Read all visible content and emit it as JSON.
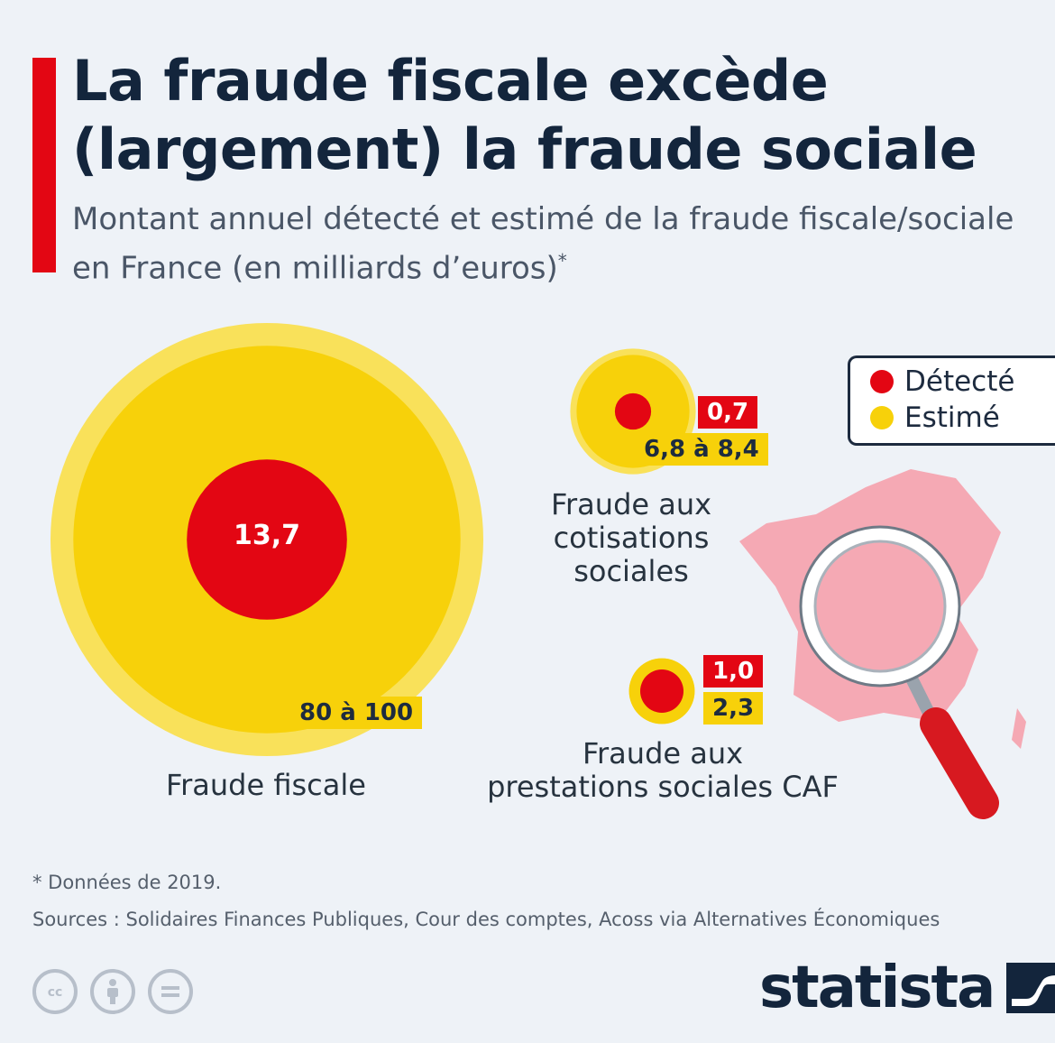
{
  "header": {
    "title": "La fraude fiscale excède (largement) la fraude sociale",
    "subtitle": "Montant annuel détecté et estimé de la fraude fiscale/sociale en France (en milliards d’euros)",
    "subtitle_mark": "*"
  },
  "chart_data": {
    "type": "bubble",
    "unit": "milliards d’euros",
    "categories": [
      "Fraude fiscale",
      "Fraude aux cotisations sociales",
      "Fraude aux prestations sociales CAF"
    ],
    "series": [
      {
        "name": "Détecté",
        "values": [
          13.7,
          0.7,
          1.0
        ],
        "labels": [
          "13,7",
          "0,7",
          "1,0"
        ]
      },
      {
        "name": "Estimé",
        "values": [
          [
            80,
            100
          ],
          [
            6.8,
            8.4
          ],
          [
            2.3,
            2.3
          ]
        ],
        "labels": [
          "80 à 100",
          "6,8 à 8,4",
          "2,3"
        ]
      }
    ],
    "legend_position": "top-right"
  },
  "category_labels": {
    "fiscale": "Fraude fiscale",
    "cotisations": [
      "Fraude aux",
      "cotisations",
      "sociales"
    ],
    "caf": [
      "Fraude aux",
      "prestations sociales CAF"
    ]
  },
  "legend": {
    "detected": {
      "label": "Détecté",
      "color": "#e30613"
    },
    "estimated": {
      "label": "Estimé",
      "color": "#f7d10a"
    }
  },
  "colors": {
    "accent": "#e30613",
    "estimated": "#f7d10a",
    "detected": "#e30613",
    "map": "#f5a9b4"
  },
  "illustration": {
    "icons": [
      "france-map-icon",
      "magnifying-glass-icon"
    ]
  },
  "footer": {
    "note": "* Données de 2019.",
    "sources": "Sources : Solidaires Finances Publiques, Cour des comptes, Acoss via Alternatives Économiques",
    "license_icons": [
      "cc-icon",
      "attribution-icon",
      "no-derivatives-icon"
    ],
    "brand": "statista"
  }
}
